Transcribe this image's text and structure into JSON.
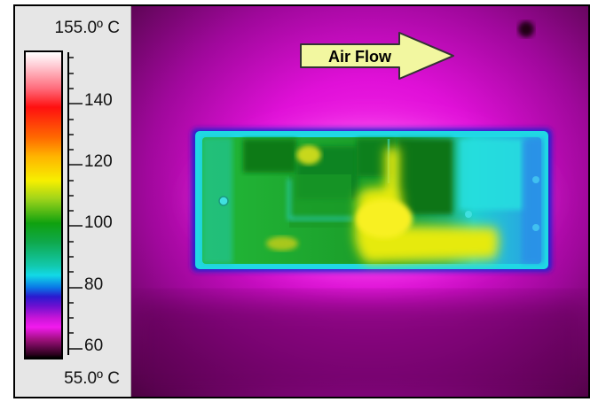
{
  "scale": {
    "max_label": "155.0º C",
    "min_label": "55.0º C",
    "ticks": [
      "140",
      "120",
      "100",
      "80",
      "60"
    ]
  },
  "annotation": {
    "arrow_label": "Air Flow",
    "arrow_color": "#f2f7a0"
  },
  "colors": {
    "background_hot_spread": "#d400c8",
    "board_edge": "#22d8e0",
    "board_body": "#1b9a2a",
    "hot_component": "#f0f000"
  }
}
